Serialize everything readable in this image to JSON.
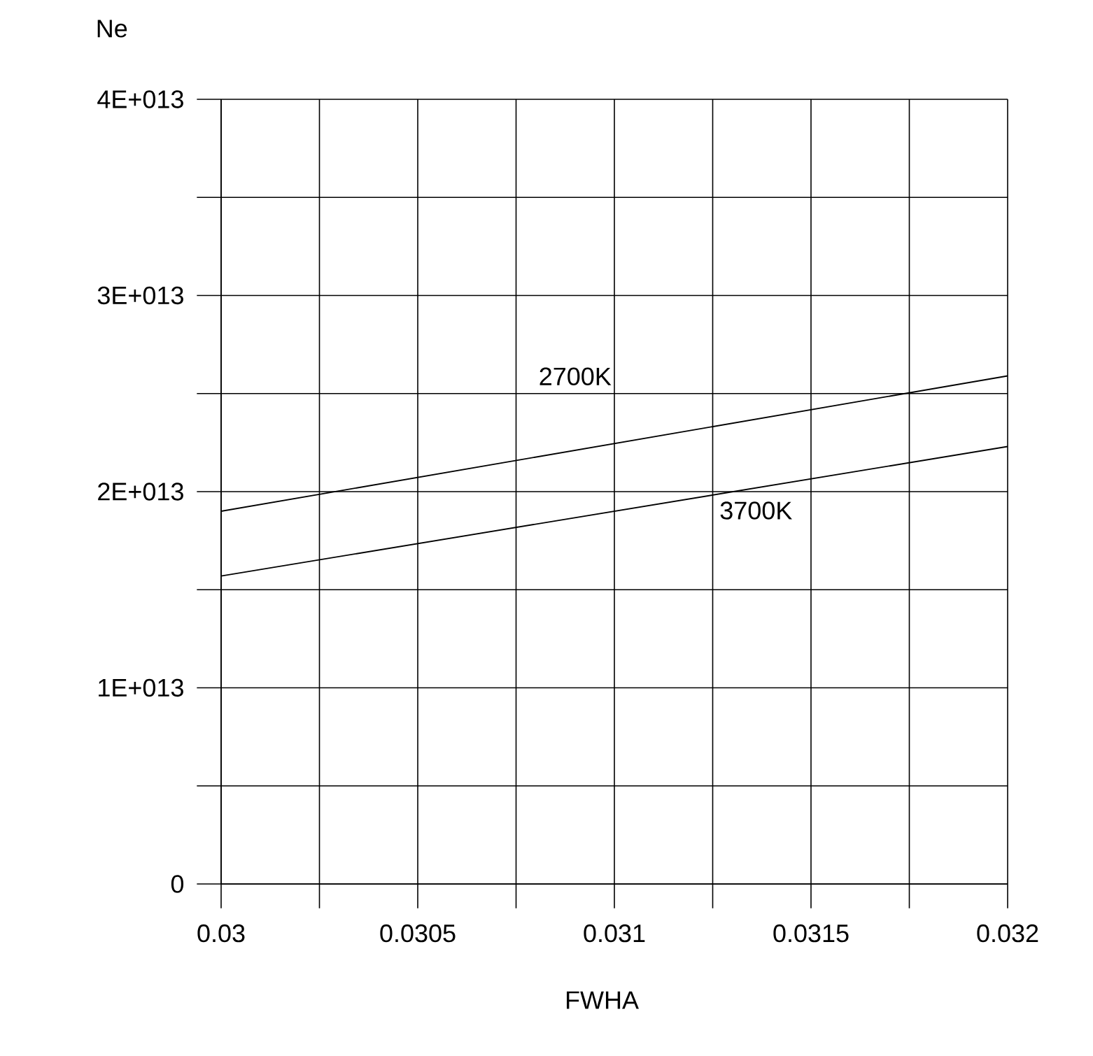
{
  "chart_data": {
    "type": "line",
    "xlabel": "FWHA",
    "ylabel": "Ne",
    "x": [
      0.03,
      0.032
    ],
    "series": [
      {
        "name": "2700K",
        "color": "#000000",
        "values": [
          19000000000000.0,
          25900000000000.0
        ]
      },
      {
        "name": "3700K",
        "color": "#000000",
        "values": [
          15700000000000.0,
          22300000000000.0
        ]
      }
    ],
    "xlim": [
      0.03,
      0.032
    ],
    "xticks": [
      0.03,
      {
        "value": 0.03025,
        "label": null
      },
      0.0305,
      {
        "value": 0.03075,
        "label": null
      },
      0.031,
      {
        "value": 0.03125,
        "label": null
      },
      0.0315,
      {
        "value": 0.03175,
        "label": null
      },
      0.032
    ],
    "ylim": [
      0,
      40000000000000.0
    ],
    "yticks": [
      0,
      {
        "value": 5000000000000.0,
        "label": null
      },
      {
        "value": 10000000000000.0,
        "label": "1E+013"
      },
      {
        "value": 15000000000000.0,
        "label": null
      },
      {
        "value": 20000000000000.0,
        "label": "2E+013"
      },
      {
        "value": 25000000000000.0,
        "label": null
      },
      {
        "value": 30000000000000.0,
        "label": "3E+013"
      },
      {
        "value": 35000000000000.0,
        "label": null
      },
      {
        "value": 40000000000000.0,
        "label": "4E+013"
      }
    ],
    "grid": true,
    "line_style": "solid",
    "marker": "none"
  }
}
